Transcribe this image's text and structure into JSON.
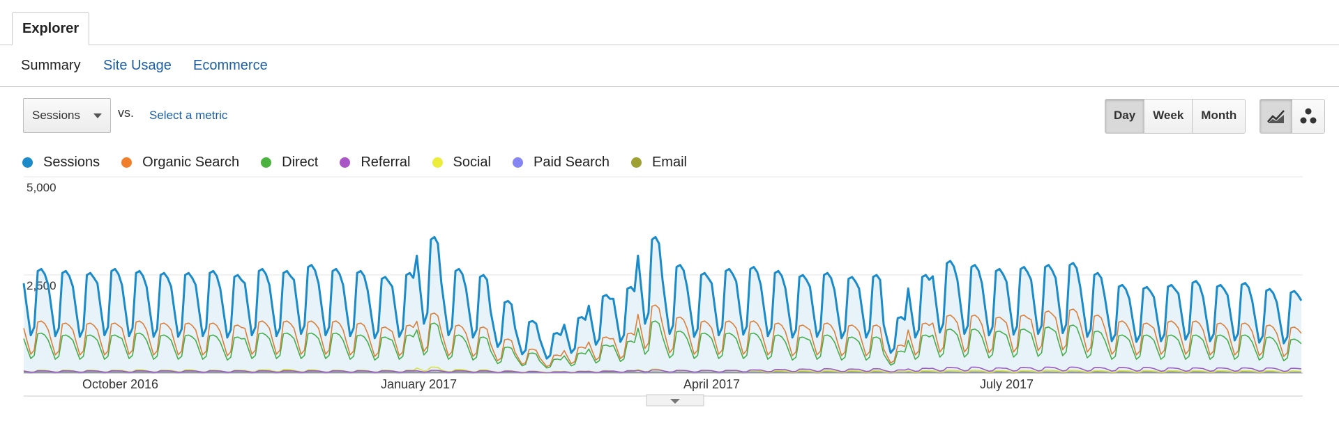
{
  "tabs": {
    "explorer": "Explorer"
  },
  "subtabs": [
    {
      "label": "Summary",
      "active": true
    },
    {
      "label": "Site Usage",
      "active": false
    },
    {
      "label": "Ecommerce",
      "active": false
    }
  ],
  "controls": {
    "metric": "Sessions",
    "vs": "vs.",
    "select_metric": "Select a metric",
    "granularity": [
      "Day",
      "Week",
      "Month"
    ],
    "granularity_selected": "Day",
    "view_icons": [
      "line-chart-icon",
      "motion-chart-icon"
    ]
  },
  "chart_data": {
    "type": "line",
    "title": "",
    "x": [
      "2016-09-01",
      "2017-08-31"
    ],
    "x_ticks": [
      "October 2016",
      "January 2017",
      "April 2017",
      "July 2017"
    ],
    "y_ticks": [
      "5,000",
      "2,500"
    ],
    "ylim": [
      0,
      5000
    ],
    "series": [
      {
        "name": "Sessions",
        "color": "#1a8ac9",
        "area": true,
        "weekly": [
          2600,
          2550,
          2500,
          2600,
          2550,
          2500,
          2500,
          2550,
          2450,
          2600,
          2550,
          2700,
          2600,
          2550,
          2400,
          2500,
          3400,
          2600,
          2450,
          1800,
          1300,
          1000,
          1400,
          1950,
          2150,
          3400,
          2700,
          2500,
          2600,
          2650,
          2550,
          2450,
          2500,
          2400,
          2450,
          1400,
          2450,
          2800,
          2700,
          2600,
          2650,
          2700,
          2750,
          2500,
          2200,
          2150,
          2200,
          2300,
          2200,
          2250,
          2100,
          2050,
          2100,
          2150,
          2200,
          2300,
          2450,
          2550,
          3000,
          3750,
          3000,
          3000,
          2950,
          2850,
          2900,
          2900
        ]
      },
      {
        "name": "Organic Search",
        "color": "#f07e2a",
        "weekly": [
          1300,
          1250,
          1250,
          1250,
          1300,
          1250,
          1250,
          1250,
          1200,
          1300,
          1300,
          1300,
          1300,
          1250,
          1150,
          1200,
          1500,
          1200,
          1150,
          850,
          600,
          450,
          650,
          900,
          1000,
          1700,
          1400,
          1300,
          1300,
          1300,
          1250,
          1200,
          1250,
          1200,
          1200,
          700,
          1250,
          1450,
          1450,
          1400,
          1450,
          1550,
          1600,
          1450,
          1300,
          1250,
          1300,
          1300,
          1250,
          1250,
          1200,
          1150,
          1150,
          1150,
          1200,
          1250,
          1300,
          1350,
          1500,
          2500,
          1750,
          1700,
          1650,
          1600,
          1600,
          1550
        ]
      },
      {
        "name": "Direct",
        "color": "#4bb23f",
        "weekly": [
          1000,
          950,
          950,
          950,
          1000,
          950,
          950,
          950,
          900,
          1000,
          1000,
          1000,
          1000,
          950,
          900,
          950,
          1250,
          950,
          900,
          650,
          500,
          350,
          500,
          700,
          800,
          1300,
          1050,
          1000,
          1000,
          1000,
          950,
          900,
          950,
          900,
          900,
          550,
          950,
          1100,
          1100,
          1050,
          1100,
          1150,
          1200,
          1050,
          950,
          950,
          950,
          950,
          950,
          950,
          900,
          850,
          850,
          850,
          900,
          950,
          950,
          1000,
          1100,
          1600,
          1200,
          1150,
          1100,
          1050,
          1050,
          1000
        ]
      },
      {
        "name": "Referral",
        "color": "#a855c6",
        "weekly": [
          60,
          60,
          60,
          60,
          60,
          60,
          60,
          60,
          60,
          60,
          60,
          60,
          60,
          60,
          60,
          60,
          70,
          60,
          60,
          50,
          40,
          30,
          40,
          50,
          60,
          80,
          70,
          70,
          70,
          80,
          90,
          100,
          110,
          100,
          110,
          80,
          120,
          140,
          150,
          130,
          140,
          150,
          150,
          140,
          140,
          140,
          130,
          130,
          130,
          130,
          130,
          120,
          120,
          130,
          140,
          150,
          160,
          170,
          190,
          280,
          220,
          210,
          200,
          200,
          190,
          190
        ]
      },
      {
        "name": "Social",
        "color": "#ecec3a",
        "weekly": [
          70,
          70,
          70,
          70,
          80,
          70,
          80,
          70,
          70,
          80,
          90,
          80,
          70,
          70,
          70,
          70,
          150,
          90,
          80,
          60,
          50,
          40,
          50,
          60,
          60,
          100,
          70,
          70,
          70,
          70,
          60,
          60,
          60,
          60,
          60,
          40,
          60,
          70,
          70,
          60,
          60,
          70,
          70,
          60,
          60,
          60,
          60,
          60,
          60,
          60,
          60,
          50,
          50,
          50,
          60,
          60,
          60,
          60,
          70,
          100,
          80,
          80,
          70,
          70,
          70,
          70
        ]
      },
      {
        "name": "Paid Search",
        "color": "#8484f2",
        "weekly": [
          10,
          10,
          10,
          10,
          10,
          10,
          10,
          10,
          10,
          10,
          10,
          10,
          10,
          10,
          10,
          10,
          10,
          10,
          10,
          10,
          10,
          10,
          10,
          10,
          10,
          10,
          10,
          10,
          10,
          10,
          10,
          10,
          10,
          10,
          10,
          10,
          10,
          10,
          10,
          10,
          10,
          10,
          10,
          10,
          10,
          10,
          10,
          10,
          10,
          10,
          10,
          10,
          10,
          10,
          10,
          10,
          10,
          10,
          10,
          10,
          10,
          10,
          10,
          10,
          10,
          10
        ]
      },
      {
        "name": "Email",
        "color": "#9ea032",
        "weekly": [
          30,
          30,
          30,
          30,
          30,
          30,
          30,
          30,
          30,
          30,
          30,
          30,
          30,
          30,
          30,
          30,
          30,
          30,
          30,
          30,
          30,
          30,
          30,
          30,
          30,
          30,
          30,
          30,
          30,
          30,
          30,
          30,
          30,
          30,
          30,
          30,
          30,
          30,
          30,
          30,
          30,
          30,
          30,
          30,
          30,
          30,
          30,
          30,
          30,
          30,
          30,
          30,
          30,
          30,
          30,
          30,
          30,
          30,
          30,
          30,
          30,
          30,
          30,
          30,
          30,
          30
        ]
      }
    ],
    "weekday_factor": [
      0.45,
      1.0,
      1.02,
      0.97,
      0.88,
      0.62,
      0.37
    ],
    "grid": true,
    "legend_position": "top-left"
  }
}
